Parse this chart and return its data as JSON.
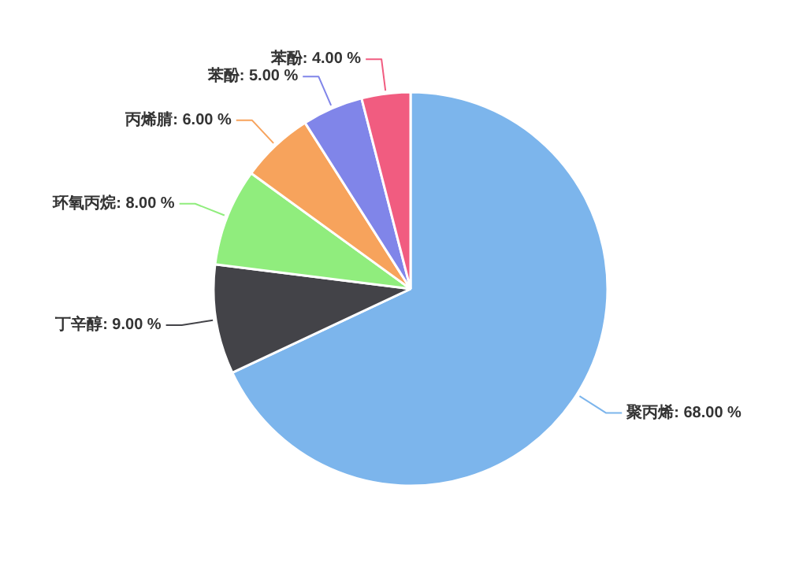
{
  "chart_data": {
    "type": "pie",
    "categories": [
      "聚丙烯",
      "丁辛醇",
      "环氧丙烷",
      "丙烯腈",
      "苯酚",
      "苯酚"
    ],
    "values": [
      68,
      9,
      8,
      6,
      5,
      4
    ],
    "value_labels": [
      "68.00 %",
      "9.00 %",
      "8.00 %",
      "6.00 %",
      "5.00 %",
      "4.00 %"
    ],
    "colors": [
      "#7cb5ec",
      "#434348",
      "#90ed7d",
      "#f7a35c",
      "#8085e9",
      "#f15c80"
    ]
  }
}
